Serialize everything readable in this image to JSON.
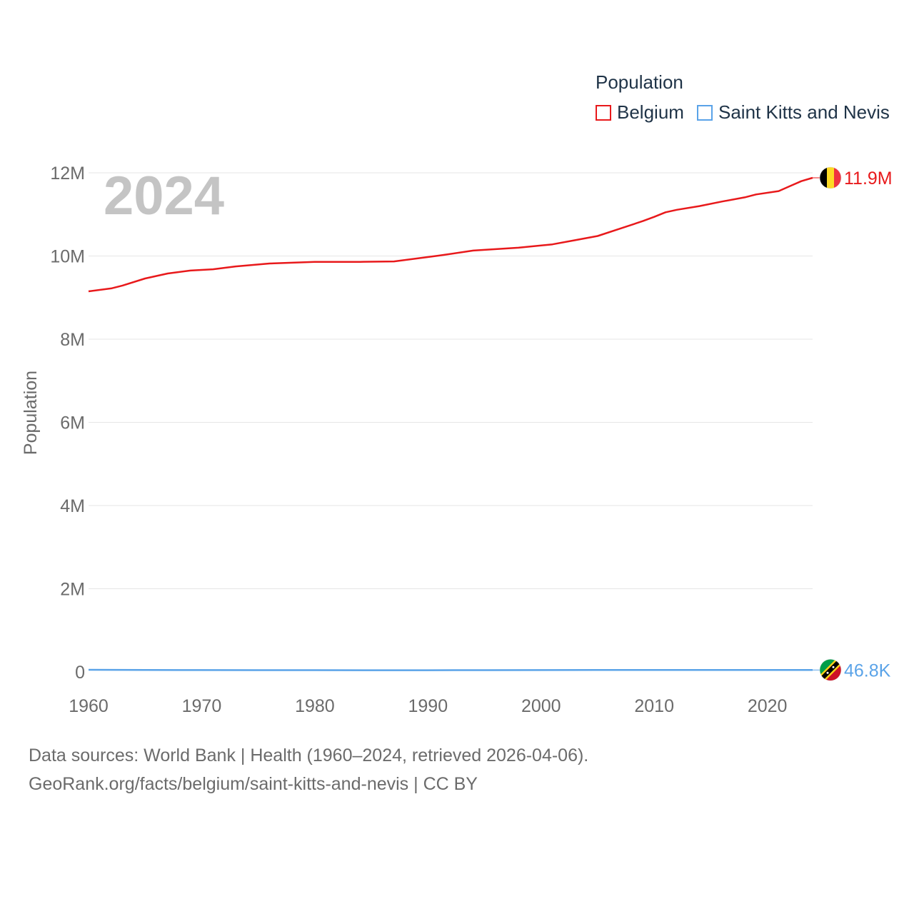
{
  "legend": {
    "title": "Population",
    "items": [
      {
        "label": "Belgium",
        "color": "#e8191b"
      },
      {
        "label": "Saint Kitts and Nevis",
        "color": "#5aa3e8"
      }
    ]
  },
  "footer": {
    "line1": "Data sources: World Bank | Health (1960–2024, retrieved 2026-04-06).",
    "line2": "GeoRank.org/facts/belgium/saint-kitts-and-nevis | CC BY"
  },
  "chart_data": {
    "type": "line",
    "title": "Population",
    "year_label": "2024",
    "xlabel": "",
    "ylabel": "Population",
    "xlim": [
      1960,
      2024
    ],
    "ylim": [
      0,
      12000000
    ],
    "x_ticks": [
      1960,
      1970,
      1980,
      1990,
      2000,
      2010,
      2020
    ],
    "y_ticks": [
      {
        "value": 0,
        "label": "0"
      },
      {
        "value": 2000000,
        "label": "2M"
      },
      {
        "value": 4000000,
        "label": "4M"
      },
      {
        "value": 6000000,
        "label": "6M"
      },
      {
        "value": 8000000,
        "label": "8M"
      },
      {
        "value": 10000000,
        "label": "10M"
      },
      {
        "value": 12000000,
        "label": "12M"
      }
    ],
    "series": [
      {
        "name": "Belgium",
        "color": "#e8191b",
        "end_label": "11.9M",
        "flag": "belgium-flag",
        "x": [
          1960,
          1962,
          1963,
          1965,
          1967,
          1969,
          1971,
          1973,
          1976,
          1980,
          1984,
          1987,
          1991,
          1994,
          1998,
          2001,
          2003,
          2005,
          2007,
          2009,
          2010,
          2011,
          2012,
          2014,
          2016,
          2018,
          2019,
          2021,
          2022,
          2023,
          2024
        ],
        "values": [
          9150000,
          9220000,
          9290000,
          9460000,
          9580000,
          9650000,
          9680000,
          9750000,
          9820000,
          9860000,
          9860000,
          9870000,
          10010000,
          10130000,
          10200000,
          10280000,
          10380000,
          10480000,
          10660000,
          10840000,
          10940000,
          11050000,
          11110000,
          11200000,
          11310000,
          11410000,
          11480000,
          11560000,
          11680000,
          11800000,
          11880000
        ]
      },
      {
        "name": "Saint Kitts and Nevis",
        "color": "#5aa3e8",
        "end_label": "46.8K",
        "flag": "saint-kitts-and-nevis-flag",
        "x": [
          1960,
          1965,
          1970,
          1975,
          1980,
          1985,
          1990,
          1995,
          2000,
          2005,
          2010,
          2015,
          2020,
          2024
        ],
        "values": [
          51000,
          48000,
          45000,
          43000,
          43000,
          42000,
          41000,
          43000,
          45000,
          47000,
          48000,
          48000,
          47000,
          46800
        ]
      }
    ]
  }
}
